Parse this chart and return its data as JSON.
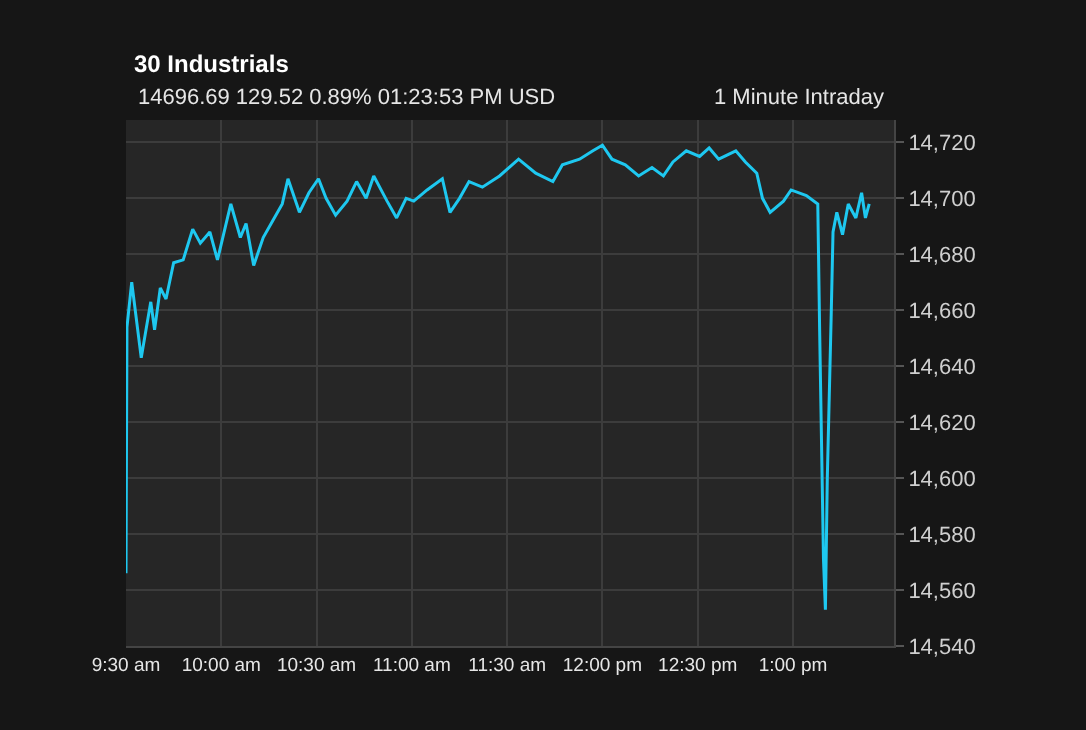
{
  "chart_data": {
    "type": "line",
    "title": "30 Industrials",
    "subtitle": "14696.69 129.52 0.89% 01:23:53 PM USD",
    "annotations": [
      "1 Minute Intraday"
    ],
    "x": [
      9.5,
      9.505,
      9.53,
      9.58,
      9.63,
      9.65,
      9.68,
      9.71,
      9.75,
      9.8,
      9.85,
      9.89,
      9.94,
      9.98,
      10.05,
      10.1,
      10.13,
      10.17,
      10.22,
      10.27,
      10.32,
      10.35,
      10.41,
      10.46,
      10.51,
      10.55,
      10.6,
      10.66,
      10.71,
      10.76,
      10.8,
      10.87,
      10.92,
      10.97,
      11.01,
      11.08,
      11.16,
      11.2,
      11.25,
      11.3,
      11.37,
      11.46,
      11.56,
      11.65,
      11.74,
      11.79,
      11.88,
      11.95,
      12.0,
      12.05,
      12.12,
      12.19,
      12.26,
      12.32,
      12.37,
      12.44,
      12.51,
      12.56,
      12.61,
      12.7,
      12.75,
      12.81,
      12.84,
      12.88,
      12.95,
      12.99,
      13.07,
      13.13,
      13.14,
      13.16,
      13.17,
      13.18,
      13.2,
      13.21,
      13.23,
      13.26,
      13.29,
      13.33,
      13.36,
      13.38,
      13.4
    ],
    "series": [
      {
        "color": "#1ec8f0",
        "values": [
          14566,
          14654,
          14670,
          14643,
          14663,
          14653,
          14668,
          14664,
          14677,
          14678,
          14689,
          14684,
          14688,
          14678,
          14698,
          14686,
          14691,
          14676,
          14686,
          14692,
          14698,
          14707,
          14695,
          14702,
          14707,
          14700,
          14694,
          14699,
          14706,
          14700,
          14708,
          14699,
          14693,
          14700,
          14699,
          14703,
          14707,
          14695,
          14700,
          14706,
          14704,
          14708,
          14714,
          14709,
          14706,
          14712,
          14714,
          14717,
          14719,
          14714,
          14712,
          14708,
          14711,
          14708,
          14713,
          14717,
          14715,
          14718,
          14714,
          14717,
          14713,
          14709,
          14700,
          14695,
          14699,
          14703,
          14701,
          14698,
          14652,
          14571,
          14553,
          14600,
          14657,
          14688,
          14695,
          14687,
          14698,
          14693,
          14702,
          14693,
          14698
        ]
      }
    ],
    "xlim": [
      9.5,
      13.53
    ],
    "xticks": [
      {
        "value": 9.5,
        "label": "9:30 am"
      },
      {
        "value": 10,
        "label": "10:00 am"
      },
      {
        "value": 10.5,
        "label": "10:30 am"
      },
      {
        "value": 11,
        "label": "11:00 am"
      },
      {
        "value": 11.5,
        "label": "11:30 am"
      },
      {
        "value": 12,
        "label": "12:00 pm"
      },
      {
        "value": 12.5,
        "label": "12:30 pm"
      },
      {
        "value": 13,
        "label": "1:00 pm"
      }
    ],
    "ylim": [
      14540,
      14728
    ],
    "yticks": [
      {
        "value": 14540,
        "label": "14,540"
      },
      {
        "value": 14560,
        "label": "14,560"
      },
      {
        "value": 14580,
        "label": "14,580"
      },
      {
        "value": 14600,
        "label": "14,600"
      },
      {
        "value": 14620,
        "label": "14,620"
      },
      {
        "value": 14640,
        "label": "14,640"
      },
      {
        "value": 14660,
        "label": "14,660"
      },
      {
        "value": 14680,
        "label": "14,680"
      },
      {
        "value": 14700,
        "label": "14,700"
      },
      {
        "value": 14720,
        "label": "14,720"
      }
    ],
    "grid": true,
    "marker": "none",
    "line_style": "solid"
  }
}
